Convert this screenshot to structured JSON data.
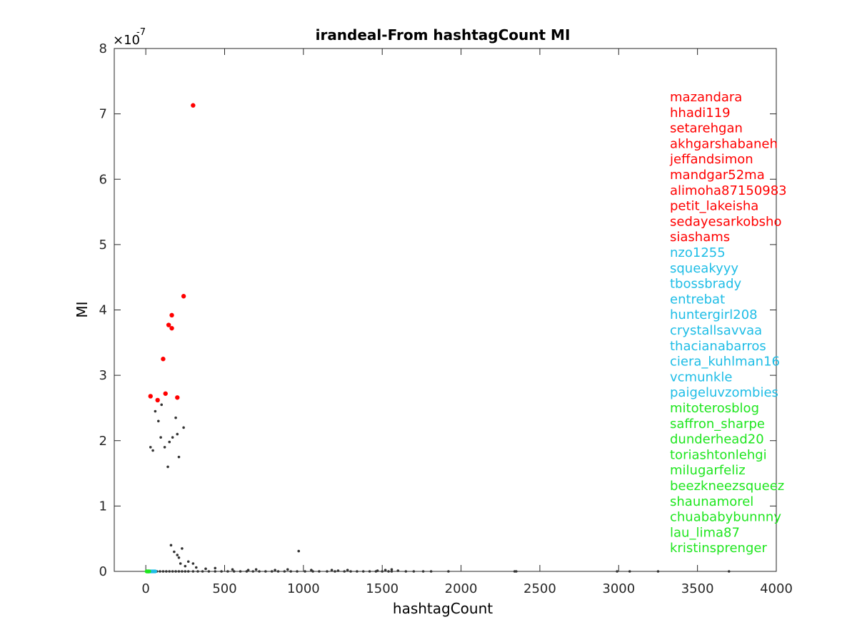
{
  "chart_data": {
    "type": "scatter",
    "title": "irandeal-From hashtagCount MI",
    "xlabel": "hashtagCount",
    "ylabel": "MI",
    "xlim": [
      -200,
      4000
    ],
    "ylim": [
      0,
      8e-07
    ],
    "y_exponent_label": "×10",
    "y_exponent_value": "-7",
    "xticks": [
      0,
      500,
      1000,
      1500,
      2000,
      2500,
      3000,
      3500,
      4000
    ],
    "yticks": [
      0,
      1,
      2,
      3,
      4,
      5,
      6,
      7,
      8
    ],
    "ytick_scale": 1e-07,
    "grid": false,
    "colors": {
      "background_points": "#333333",
      "top_group": "#ff0000",
      "middle_group": "#1ebde6",
      "bottom_group": "#1ee61e"
    },
    "series": [
      {
        "group": "top",
        "color": "#ff0000",
        "points": [
          [
            300,
            7.13e-07
          ],
          [
            240,
            4.21e-07
          ],
          [
            165,
            3.92e-07
          ],
          [
            145,
            3.77e-07
          ],
          [
            165,
            3.72e-07
          ],
          [
            110,
            3.25e-07
          ],
          [
            125,
            2.72e-07
          ],
          [
            30,
            2.68e-07
          ],
          [
            200,
            2.66e-07
          ],
          [
            75,
            2.62e-07
          ]
        ]
      },
      {
        "group": "middle",
        "color": "#1ebde6",
        "points": [
          [
            15,
            0.0
          ],
          [
            25,
            0.0
          ],
          [
            40,
            0.0
          ],
          [
            55,
            0.0
          ],
          [
            30,
            0.0
          ],
          [
            45,
            0.0
          ],
          [
            20,
            0.0
          ],
          [
            60,
            0.0
          ],
          [
            35,
            0.0
          ],
          [
            50,
            0.0
          ]
        ]
      },
      {
        "group": "bottom",
        "color": "#1ee61e",
        "points": [
          [
            5,
            0.0
          ],
          [
            10,
            0.0
          ],
          [
            12,
            0.0
          ],
          [
            18,
            0.0
          ],
          [
            8,
            0.0
          ],
          [
            22,
            0.0
          ],
          [
            14,
            0.0
          ],
          [
            6,
            0.0
          ],
          [
            16,
            0.0
          ],
          [
            20,
            0.0
          ]
        ]
      },
      {
        "group": "background",
        "color": "#333333",
        "points": [
          [
            970,
            3.1e-08
          ],
          [
            240,
            2.2e-07
          ],
          [
            190,
            2.35e-07
          ],
          [
            210,
            1.75e-07
          ],
          [
            80,
            2.3e-07
          ],
          [
            100,
            2.55e-07
          ],
          [
            60,
            2.45e-07
          ],
          [
            150,
            1.98e-07
          ],
          [
            120,
            1.9e-07
          ],
          [
            45,
            1.85e-07
          ],
          [
            30,
            1.9e-07
          ],
          [
            170,
            2.05e-07
          ],
          [
            95,
            2.05e-07
          ],
          [
            200,
            2.1e-07
          ],
          [
            140,
            1.6e-07
          ],
          [
            3700,
            0.0
          ],
          [
            3250,
            0.0
          ],
          [
            3070,
            0.0
          ],
          [
            2990,
            0.0
          ],
          [
            2340,
            0.0
          ],
          [
            2350,
            0.0
          ],
          [
            1920,
            0.0
          ],
          [
            1810,
            0.0
          ],
          [
            1760,
            0.0
          ],
          [
            1700,
            0.0
          ],
          [
            1650,
            0.0
          ],
          [
            1560,
            0.0
          ],
          [
            1540,
            0.0
          ],
          [
            1500,
            0.0
          ],
          [
            1460,
            0.0
          ],
          [
            1420,
            0.0
          ],
          [
            1380,
            0.0
          ],
          [
            1340,
            0.0
          ],
          [
            1300,
            0.0
          ],
          [
            1260,
            0.0
          ],
          [
            1200,
            0.0
          ],
          [
            1150,
            0.0
          ],
          [
            1100,
            0.0
          ],
          [
            1060,
            0.0
          ],
          [
            1010,
            0.0
          ],
          [
            960,
            0.0
          ],
          [
            920,
            0.0
          ],
          [
            880,
            0.0
          ],
          [
            840,
            0.0
          ],
          [
            800,
            0.0
          ],
          [
            760,
            0.0
          ],
          [
            720,
            0.0
          ],
          [
            680,
            0.0
          ],
          [
            640,
            0.0
          ],
          [
            600,
            0.0
          ],
          [
            560,
            0.0
          ],
          [
            520,
            0.0
          ],
          [
            480,
            0.0
          ],
          [
            440,
            0.0
          ],
          [
            400,
            0.0
          ],
          [
            360,
            0.0
          ],
          [
            330,
            0.0
          ],
          [
            300,
            0.0
          ],
          [
            270,
            0.0
          ],
          [
            250,
            0.0
          ],
          [
            230,
            0.0
          ],
          [
            210,
            0.0
          ],
          [
            190,
            0.0
          ],
          [
            170,
            0.0
          ],
          [
            150,
            0.0
          ],
          [
            130,
            0.0
          ],
          [
            110,
            0.0
          ],
          [
            90,
            0.0
          ],
          [
            70,
            0.0
          ],
          [
            440,
            5e-09
          ],
          [
            380,
            4e-09
          ],
          [
            320,
            6e-09
          ],
          [
            300,
            1.2e-08
          ],
          [
            270,
            1.5e-08
          ],
          [
            250,
            8e-09
          ],
          [
            230,
            3.5e-08
          ],
          [
            220,
            1.2e-08
          ],
          [
            210,
            2.1e-08
          ],
          [
            200,
            2.5e-08
          ],
          [
            180,
            3e-08
          ],
          [
            160,
            4e-08
          ],
          [
            550,
            3e-09
          ],
          [
            650,
            2e-09
          ],
          [
            700,
            3e-09
          ],
          [
            820,
            2e-09
          ],
          [
            900,
            3e-09
          ],
          [
            1050,
            2e-09
          ],
          [
            1180,
            2e-09
          ],
          [
            1280,
            2e-09
          ],
          [
            1600,
            1e-09
          ],
          [
            1560,
            3e-09
          ],
          [
            1520,
            2e-09
          ],
          [
            1470,
            1e-09
          ],
          [
            1220,
            1e-09
          ]
        ]
      }
    ],
    "legend_labels": {
      "top": [
        "mazandara",
        "hhadi119",
        "setarehgan",
        "akhgarshabaneh",
        "jeffandsimon",
        "mandgar52ma",
        "alimoha87150983",
        "petit_lakeisha",
        "sedayesarkobsho",
        "siashams"
      ],
      "middle": [
        "nzo1255",
        "squeakyyy",
        "tbossbrady",
        "entrebat",
        "huntergirl208",
        "crystallsavvaa",
        "thacianabarros",
        "ciera_kuhlman16",
        "vcmunkle",
        "paigeluvzombies"
      ],
      "bottom": [
        "mitoterosblog",
        "saffron_sharpe",
        "dunderhead20",
        "toriashtonlehgi",
        "milugarfeliz",
        "beezkneezsqueez",
        "shaunamorel",
        "chuababybunnny",
        "lau_lima87",
        "kristinsprenger"
      ]
    }
  }
}
